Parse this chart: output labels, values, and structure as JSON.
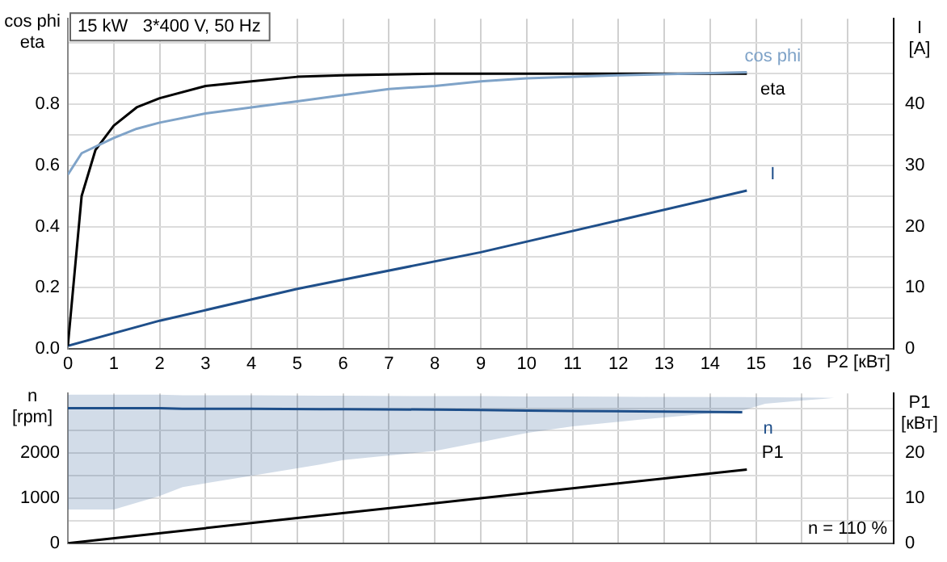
{
  "chart_data": [
    {
      "type": "line",
      "title": "15 kW   3*400 V, 50 Hz",
      "xlabel": "P2 [кВт]",
      "ylabel": "cos phi\neta",
      "y2label": "I\n[A]",
      "xlim": [
        0,
        18
      ],
      "xticks": [
        0,
        1,
        2,
        3,
        4,
        5,
        6,
        7,
        8,
        9,
        10,
        11,
        12,
        13,
        14,
        15,
        16,
        {
          "value": 17,
          "label": null
        }
      ],
      "ylim": [
        0,
        1.08
      ],
      "yticks": [
        {
          "value": 0,
          "label": "0.0"
        },
        {
          "value": 0.1,
          "label": null
        },
        0.2,
        {
          "value": 0.3,
          "label": null
        },
        0.4,
        {
          "value": 0.5,
          "label": null
        },
        0.6,
        {
          "value": 0.7,
          "label": null
        },
        0.8,
        {
          "value": 0.9,
          "label": null
        },
        {
          "value": 1.0,
          "label": null
        }
      ],
      "y2lim": [
        0,
        54
      ],
      "y2ticks": [
        0,
        10,
        20,
        30,
        40
      ],
      "grid": true,
      "legend": false,
      "series": [
        {
          "name": "cos phi",
          "color": "#7fa3c8",
          "x": [
            0,
            0.3,
            1,
            1.5,
            2,
            3,
            4,
            5,
            6,
            7,
            8,
            9,
            10,
            12,
            14.8
          ],
          "values": [
            0.57,
            0.64,
            0.69,
            0.72,
            0.74,
            0.77,
            0.79,
            0.81,
            0.83,
            0.85,
            0.86,
            0.875,
            0.885,
            0.895,
            0.905
          ]
        },
        {
          "name": "eta",
          "color": "#000000",
          "x": [
            0,
            0.3,
            0.6,
            1,
            1.5,
            2,
            3,
            4,
            5,
            6,
            8,
            10,
            14.8
          ],
          "values": [
            0.01,
            0.5,
            0.65,
            0.73,
            0.79,
            0.82,
            0.86,
            0.875,
            0.89,
            0.895,
            0.9,
            0.9,
            0.9
          ]
        },
        {
          "name": "I",
          "color": "#1f4f8a",
          "axis": "y2",
          "x": [
            0,
            2,
            5,
            9,
            12,
            14.8
          ],
          "values": [
            0.5,
            4.6,
            9.8,
            15.8,
            21,
            25.9
          ]
        }
      ]
    },
    {
      "type": "line",
      "ylabel": "n\n[rpm]",
      "y2label": "P1\n[кВт]",
      "tick_labels": "y",
      "xlim": [
        0,
        18
      ],
      "xticks": [
        0,
        1,
        2,
        3,
        4,
        5,
        6,
        7,
        8,
        9,
        10,
        11,
        12,
        13,
        14,
        15,
        16,
        17
      ],
      "ylim": [
        0,
        3330
      ],
      "yticks": [
        0,
        {
          "value": 500,
          "label": null
        },
        1000,
        {
          "value": 1500,
          "label": null
        },
        2000,
        {
          "value": 2500,
          "label": null
        },
        {
          "value": 3000,
          "label": null
        }
      ],
      "y2lim": [
        0,
        33.3
      ],
      "y2ticks": [
        0,
        10,
        20
      ],
      "grid": true,
      "legend": false,
      "annotations": [
        "n = 110 %"
      ],
      "series": [
        {
          "name": "P1",
          "color": "#000000",
          "axis": "y2",
          "x": [
            0,
            5,
            9,
            14.8
          ],
          "values": [
            0,
            5.6,
            10,
            16.4
          ]
        },
        {
          "name": "n",
          "color": "#1f4f8a",
          "x": [
            0,
            1,
            2,
            2.5,
            4,
            5.5,
            6,
            8,
            9,
            10,
            11,
            12.5,
            14.7,
            15.2,
            16,
            16.7
          ],
          "values": [
            3000,
            3000,
            3000,
            2990,
            2990,
            2980,
            2980,
            2970,
            2960,
            2950,
            2940,
            2930,
            2910,
            null,
            null,
            null
          ],
          "lower": [
            750,
            750,
            1050,
            1250,
            1500,
            1750,
            1850,
            2050,
            2250,
            2450,
            2600,
            2750,
            2950,
            3100,
            3170,
            3230
          ],
          "upper": [
            3300,
            3300,
            3300,
            3290,
            3290,
            3280,
            3280,
            3270,
            3270,
            3260,
            3260,
            3255,
            3250,
            3245,
            3240,
            3230
          ]
        }
      ]
    }
  ]
}
